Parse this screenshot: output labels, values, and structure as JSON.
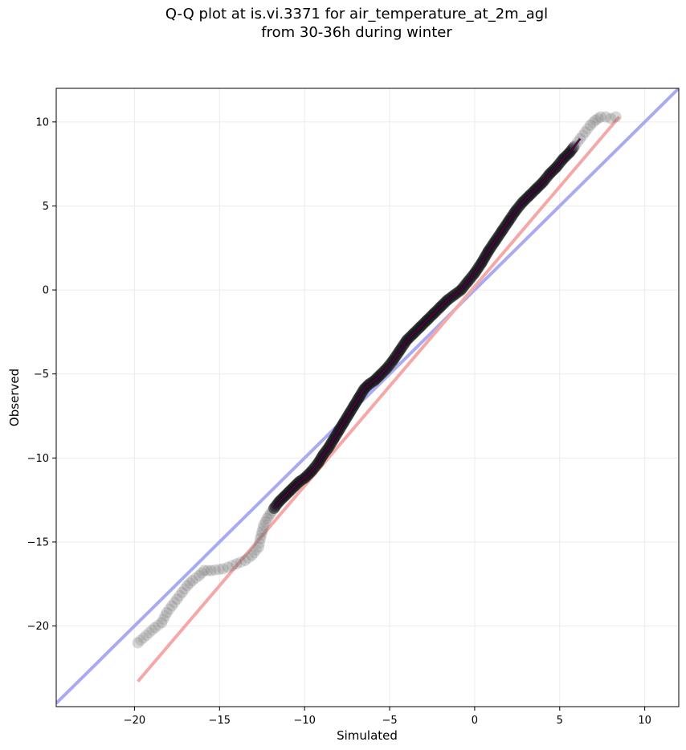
{
  "chart_data": {
    "type": "scatter",
    "title_line1": "Q-Q plot at is.vi.3371 for air_temperature_at_2m_agl",
    "title_line2": "from 30-36h during winter",
    "xlabel": "Simulated",
    "ylabel": "Observed",
    "xlim": [
      -24.6,
      12.0
    ],
    "ylim": [
      -24.8,
      12.0
    ],
    "xticks": [
      -20,
      -15,
      -10,
      -5,
      0,
      5,
      10
    ],
    "yticks": [
      -20,
      -15,
      -10,
      -5,
      0,
      5,
      10
    ],
    "xtick_labels": [
      "−20",
      "−15",
      "−10",
      "−5",
      "0",
      "5",
      "10"
    ],
    "ytick_labels": [
      "−20",
      "−15",
      "−10",
      "−5",
      "0",
      "5",
      "10"
    ],
    "grid": true,
    "identity_line": {
      "x": [
        -24.6,
        12.0
      ],
      "y": [
        -24.6,
        12.0
      ],
      "color": "#aaaaf2"
    },
    "fit_line": {
      "x": [
        -19.8,
        8.5
      ],
      "y": [
        -23.3,
        10.3
      ],
      "color": "#f4a8a8"
    },
    "quantile_curve_colors": [
      "#00007a",
      "#880000"
    ],
    "quantile_points": {
      "x": [
        -19.8,
        -18.8,
        -18.4,
        -18.1,
        -17.8,
        -17.5,
        -17.2,
        -16.9,
        -16.6,
        -16.2,
        -15.9,
        -15.5,
        -14.8,
        -14.5,
        -14.0,
        -13.5,
        -13.1,
        -12.7,
        -12.6,
        -12.5,
        -12.4,
        -12.3,
        -12.2,
        -12.0,
        -11.8,
        -11.5,
        -11.2,
        -10.9,
        -10.6,
        -10.3,
        -10.0,
        -9.6,
        -9.2,
        -8.9,
        -8.6,
        -8.3,
        -8.0,
        -7.7,
        -7.4,
        -7.1,
        -6.8,
        -6.5,
        -6.2,
        -5.9,
        -5.6,
        -5.2,
        -4.8,
        -4.4,
        -4.0,
        -3.6,
        -3.2,
        -2.8,
        -2.4,
        -2.0,
        -1.6,
        -1.2,
        -0.8,
        -0.4,
        0.0,
        0.4,
        0.8,
        1.2,
        1.6,
        2.0,
        2.4,
        2.8,
        3.2,
        3.6,
        4.0,
        4.4,
        4.8,
        5.2,
        5.6,
        5.9,
        6.2,
        6.5,
        6.8,
        7.1,
        7.4,
        7.7,
        8.0,
        8.3
      ],
      "y": [
        -21.0,
        -20.1,
        -19.8,
        -19.2,
        -18.8,
        -18.4,
        -18.0,
        -17.6,
        -17.3,
        -17.0,
        -16.7,
        -16.7,
        -16.6,
        -16.5,
        -16.3,
        -16.1,
        -15.8,
        -15.3,
        -14.8,
        -14.4,
        -14.0,
        -13.8,
        -13.6,
        -13.3,
        -13.0,
        -12.6,
        -12.3,
        -12.0,
        -11.7,
        -11.4,
        -11.2,
        -10.8,
        -10.3,
        -9.8,
        -9.4,
        -8.9,
        -8.4,
        -7.9,
        -7.4,
        -6.9,
        -6.4,
        -5.9,
        -5.6,
        -5.4,
        -5.1,
        -4.7,
        -4.2,
        -3.6,
        -3.0,
        -2.6,
        -2.2,
        -1.8,
        -1.4,
        -1.0,
        -0.6,
        -0.3,
        0.0,
        0.5,
        1.0,
        1.6,
        2.3,
        2.9,
        3.5,
        4.1,
        4.7,
        5.2,
        5.6,
        6.0,
        6.4,
        6.9,
        7.3,
        7.8,
        8.2,
        8.6,
        9.0,
        9.4,
        9.8,
        10.1,
        10.3,
        10.3,
        10.2,
        10.3
      ]
    }
  }
}
